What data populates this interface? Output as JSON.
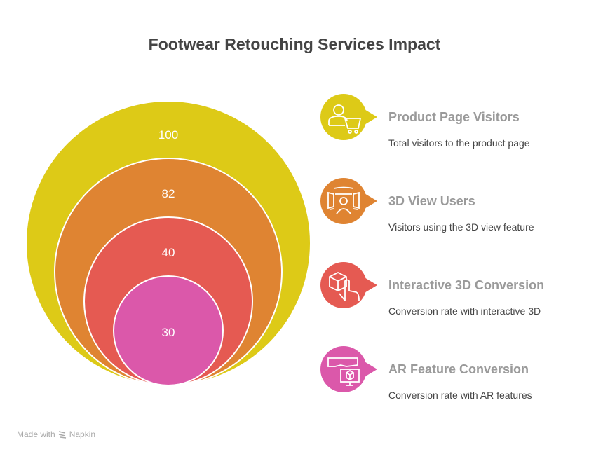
{
  "title": "Footwear Retouching Services Impact",
  "levels": [
    {
      "value": "100",
      "title": "Product Page Visitors",
      "description": "Total visitors to the product page",
      "color": "#DDCA17",
      "icon": "user-cart-icon"
    },
    {
      "value": "82",
      "title": "3D View Users",
      "description": "Visitors using the 3D view feature",
      "color": "#DF8432",
      "icon": "3d-view-user-icon"
    },
    {
      "value": "40",
      "title": "Interactive 3D Conversion",
      "description": "Conversion rate with interactive 3D",
      "color": "#E55A52",
      "icon": "cube-touch-icon"
    },
    {
      "value": "30",
      "title": "AR Feature Conversion",
      "description": "Conversion rate with AR features",
      "color": "#DB58AA",
      "icon": "ar-headset-icon"
    }
  ],
  "footer": {
    "made_with": "Made with",
    "brand": "Napkin"
  }
}
